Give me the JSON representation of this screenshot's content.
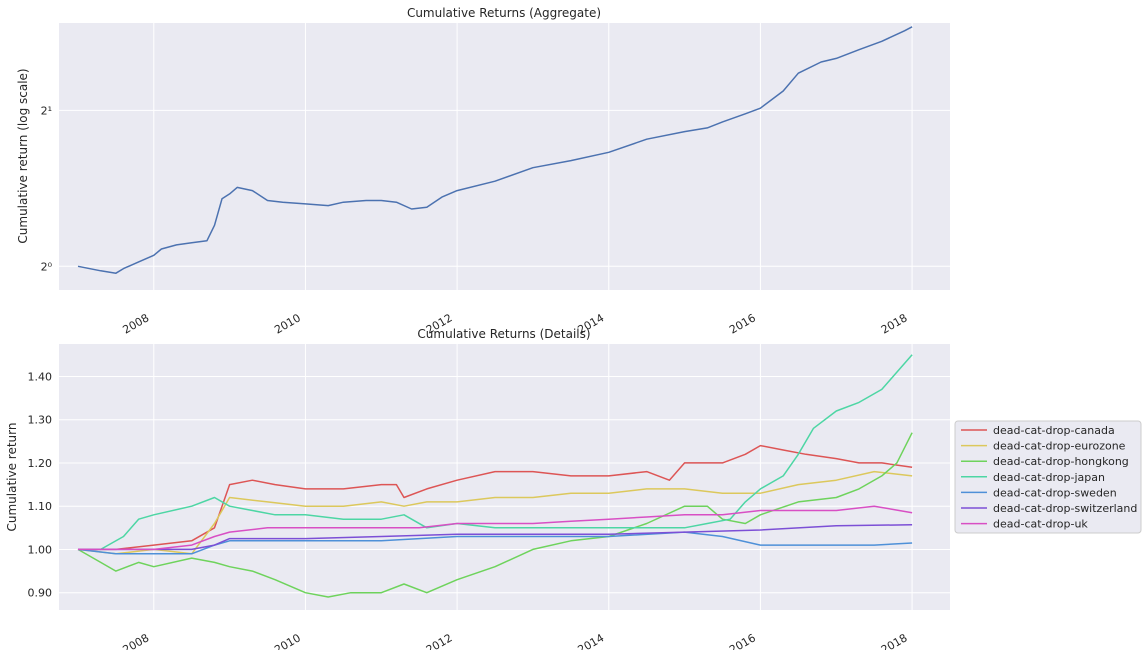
{
  "chart_data": [
    {
      "type": "line",
      "title": "Cumulative Returns (Aggregate)",
      "xlabel": "",
      "ylabel": "Cumulative return (log scale)",
      "yscale": "log2",
      "xlim": [
        2006.75,
        2018.5
      ],
      "ylim": [
        0.9,
        2.95
      ],
      "grid": true,
      "x_ticks": [
        "2008",
        "2010",
        "2012",
        "2014",
        "2016",
        "2018"
      ],
      "y_ticks": [
        {
          "label": "2⁰",
          "value": 1
        },
        {
          "label": "2¹",
          "value": 2
        }
      ],
      "series": [
        {
          "color": "#4c72b0",
          "x": [
            2007.0,
            2007.3,
            2007.5,
            2007.6,
            2007.8,
            2008.0,
            2008.1,
            2008.3,
            2008.5,
            2008.7,
            2008.8,
            2008.9,
            2009.0,
            2009.1,
            2009.3,
            2009.5,
            2009.7,
            2010.0,
            2010.3,
            2010.5,
            2010.8,
            2011.0,
            2011.2,
            2011.4,
            2011.6,
            2011.8,
            2012.0,
            2012.5,
            2013.0,
            2013.5,
            2014.0,
            2014.5,
            2015.0,
            2015.3,
            2015.5,
            2015.8,
            2016.0,
            2016.3,
            2016.5,
            2016.8,
            2017.0,
            2017.3,
            2017.6,
            2017.9,
            2018.0
          ],
          "values": [
            1.0,
            0.98,
            0.97,
            0.99,
            1.02,
            1.05,
            1.08,
            1.1,
            1.11,
            1.12,
            1.2,
            1.35,
            1.38,
            1.42,
            1.4,
            1.34,
            1.33,
            1.32,
            1.31,
            1.33,
            1.34,
            1.34,
            1.33,
            1.29,
            1.3,
            1.36,
            1.4,
            1.46,
            1.55,
            1.6,
            1.66,
            1.76,
            1.82,
            1.85,
            1.9,
            1.97,
            2.02,
            2.18,
            2.36,
            2.48,
            2.52,
            2.62,
            2.72,
            2.85,
            2.9
          ]
        }
      ]
    },
    {
      "type": "line",
      "title": "Cumulative Returns (Details)",
      "xlabel": "",
      "ylabel": "Cumulative return",
      "xlim": [
        2006.75,
        2018.5
      ],
      "ylim": [
        0.86,
        1.475
      ],
      "grid": true,
      "legend": "right",
      "x_ticks": [
        "2008",
        "2010",
        "2012",
        "2014",
        "2016",
        "2018"
      ],
      "y_ticks": [
        "0.90",
        "1.00",
        "1.10",
        "1.20",
        "1.30",
        "1.40"
      ],
      "series": [
        {
          "name": "dead-cat-drop-canada",
          "color": "#dd5555",
          "x": [
            2007.0,
            2007.5,
            2008.0,
            2008.5,
            2008.8,
            2009.0,
            2009.3,
            2009.6,
            2010.0,
            2010.5,
            2011.0,
            2011.2,
            2011.3,
            2011.6,
            2012.0,
            2012.5,
            2013.0,
            2013.5,
            2014.0,
            2014.5,
            2014.8,
            2015.0,
            2015.5,
            2015.8,
            2016.0,
            2016.3,
            2016.6,
            2017.0,
            2017.3,
            2017.6,
            2018.0
          ],
          "values": [
            1.0,
            1.0,
            1.01,
            1.02,
            1.05,
            1.15,
            1.16,
            1.15,
            1.14,
            1.14,
            1.15,
            1.15,
            1.12,
            1.14,
            1.16,
            1.18,
            1.18,
            1.17,
            1.17,
            1.18,
            1.16,
            1.2,
            1.2,
            1.22,
            1.24,
            1.23,
            1.22,
            1.21,
            1.2,
            1.2,
            1.19
          ]
        },
        {
          "name": "dead-cat-drop-eurozone",
          "color": "#dcc85c",
          "x": [
            2007.0,
            2007.5,
            2008.0,
            2008.5,
            2008.8,
            2009.0,
            2009.5,
            2010.0,
            2010.5,
            2011.0,
            2011.3,
            2011.6,
            2012.0,
            2012.5,
            2013.0,
            2013.5,
            2014.0,
            2014.5,
            2015.0,
            2015.5,
            2016.0,
            2016.5,
            2017.0,
            2017.5,
            2018.0
          ],
          "values": [
            1.0,
            0.99,
            1.0,
            0.99,
            1.06,
            1.12,
            1.11,
            1.1,
            1.1,
            1.11,
            1.1,
            1.11,
            1.11,
            1.12,
            1.12,
            1.13,
            1.13,
            1.14,
            1.14,
            1.13,
            1.13,
            1.15,
            1.16,
            1.18,
            1.17
          ]
        },
        {
          "name": "dead-cat-drop-hongkong",
          "color": "#6ed35c",
          "x": [
            2007.0,
            2007.3,
            2007.5,
            2007.8,
            2008.0,
            2008.5,
            2008.8,
            2009.0,
            2009.3,
            2009.6,
            2010.0,
            2010.3,
            2010.6,
            2011.0,
            2011.3,
            2011.6,
            2012.0,
            2012.5,
            2013.0,
            2013.5,
            2014.0,
            2014.5,
            2015.0,
            2015.3,
            2015.5,
            2015.8,
            2016.0,
            2016.5,
            2017.0,
            2017.3,
            2017.6,
            2017.8,
            2018.0
          ],
          "values": [
            1.0,
            0.97,
            0.95,
            0.97,
            0.96,
            0.98,
            0.97,
            0.96,
            0.95,
            0.93,
            0.9,
            0.89,
            0.9,
            0.9,
            0.92,
            0.9,
            0.93,
            0.96,
            1.0,
            1.02,
            1.03,
            1.06,
            1.1,
            1.1,
            1.07,
            1.06,
            1.08,
            1.11,
            1.12,
            1.14,
            1.17,
            1.2,
            1.27
          ]
        },
        {
          "name": "dead-cat-drop-japan",
          "color": "#4dd6a4",
          "x": [
            2007.0,
            2007.3,
            2007.6,
            2007.8,
            2008.0,
            2008.5,
            2008.8,
            2009.0,
            2009.3,
            2009.6,
            2010.0,
            2010.5,
            2011.0,
            2011.3,
            2011.6,
            2012.0,
            2012.5,
            2013.0,
            2013.5,
            2014.0,
            2014.5,
            2015.0,
            2015.3,
            2015.6,
            2015.8,
            2016.0,
            2016.3,
            2016.5,
            2016.7,
            2017.0,
            2017.3,
            2017.6,
            2017.8,
            2018.0
          ],
          "values": [
            1.0,
            1.0,
            1.03,
            1.07,
            1.08,
            1.1,
            1.12,
            1.1,
            1.09,
            1.08,
            1.08,
            1.07,
            1.07,
            1.08,
            1.05,
            1.06,
            1.05,
            1.05,
            1.05,
            1.05,
            1.05,
            1.05,
            1.06,
            1.07,
            1.11,
            1.14,
            1.17,
            1.22,
            1.28,
            1.32,
            1.34,
            1.37,
            1.41,
            1.45
          ]
        },
        {
          "name": "dead-cat-drop-sweden",
          "color": "#4e90d8",
          "x": [
            2007.0,
            2007.5,
            2008.0,
            2008.5,
            2008.8,
            2009.0,
            2009.5,
            2010.0,
            2011.0,
            2012.0,
            2013.0,
            2014.0,
            2015.0,
            2015.5,
            2016.0,
            2016.5,
            2017.0,
            2017.5,
            2018.0
          ],
          "values": [
            1.0,
            0.99,
            0.99,
            0.99,
            1.01,
            1.02,
            1.02,
            1.02,
            1.02,
            1.03,
            1.03,
            1.03,
            1.04,
            1.03,
            1.01,
            1.01,
            1.01,
            1.01,
            1.015
          ]
        },
        {
          "name": "dead-cat-drop-switzerland",
          "color": "#7c4fd6",
          "x": [
            2007.0,
            2007.5,
            2008.0,
            2008.5,
            2008.8,
            2009.0,
            2010.0,
            2011.0,
            2012.0,
            2013.0,
            2014.0,
            2015.0,
            2016.0,
            2017.0,
            2018.0
          ],
          "values": [
            1.0,
            1.0,
            1.0,
            1.0,
            1.01,
            1.025,
            1.025,
            1.03,
            1.035,
            1.035,
            1.035,
            1.04,
            1.045,
            1.055,
            1.057
          ]
        },
        {
          "name": "dead-cat-drop-uk",
          "color": "#d84fc4",
          "x": [
            2007.0,
            2007.5,
            2008.0,
            2008.5,
            2008.8,
            2009.0,
            2009.5,
            2010.0,
            2010.5,
            2011.0,
            2011.5,
            2012.0,
            2012.5,
            2013.0,
            2013.5,
            2014.0,
            2014.5,
            2015.0,
            2015.5,
            2016.0,
            2016.5,
            2017.0,
            2017.5,
            2018.0
          ],
          "values": [
            1.0,
            1.0,
            1.0,
            1.01,
            1.03,
            1.04,
            1.05,
            1.05,
            1.05,
            1.05,
            1.05,
            1.06,
            1.06,
            1.06,
            1.065,
            1.07,
            1.075,
            1.08,
            1.08,
            1.09,
            1.09,
            1.09,
            1.1,
            1.085
          ]
        }
      ]
    }
  ]
}
